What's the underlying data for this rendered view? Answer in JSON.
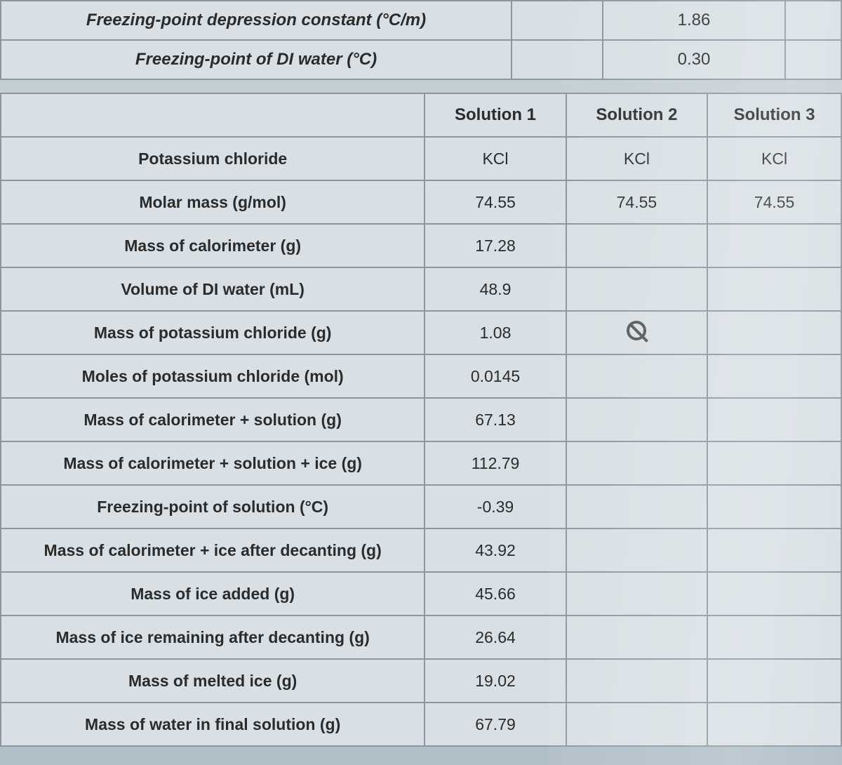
{
  "top": {
    "rows": [
      {
        "label": "Freezing-point depression constant (°C/m)",
        "value": "1.86"
      },
      {
        "label": "Freezing-point of DI water (°C)",
        "value": "0.30"
      }
    ]
  },
  "headers": {
    "blank": "",
    "sol1": "Solution 1",
    "sol2": "Solution 2",
    "sol3": "Solution 3"
  },
  "rows": [
    {
      "label": "Potassium chloride",
      "s1": "KCl",
      "s2": "KCl",
      "s3": "KCl"
    },
    {
      "label": "Molar mass (g/mol)",
      "s1": "74.55",
      "s2": "74.55",
      "s3": "74.55"
    },
    {
      "label": "Mass of calorimeter (g)",
      "s1": "17.28",
      "s2": "",
      "s3": ""
    },
    {
      "label": "Volume of DI water (mL)",
      "s1": "48.9",
      "s2": "",
      "s3": ""
    },
    {
      "label": "Mass of potassium chloride (g)",
      "s1": "1.08",
      "s2": "",
      "s3": ""
    },
    {
      "label": "Moles of potassium chloride (mol)",
      "s1": "0.0145",
      "s2": "",
      "s3": ""
    },
    {
      "label": "Mass of calorimeter + solution (g)",
      "s1": "67.13",
      "s2": "",
      "s3": ""
    },
    {
      "label": "Mass of calorimeter + solution + ice (g)",
      "s1": "112.79",
      "s2": "",
      "s3": ""
    },
    {
      "label": "Freezing-point of solution (°C)",
      "s1": "-0.39",
      "s2": "",
      "s3": ""
    },
    {
      "label": "Mass of calorimeter + ice after decanting (g)",
      "s1": "43.92",
      "s2": "",
      "s3": ""
    },
    {
      "label": "Mass of ice added (g)",
      "s1": "45.66",
      "s2": "",
      "s3": ""
    },
    {
      "label": "Mass of ice remaining after decanting (g)",
      "s1": "26.64",
      "s2": "",
      "s3": ""
    },
    {
      "label": "Mass of melted ice (g)",
      "s1": "19.02",
      "s2": "",
      "s3": ""
    },
    {
      "label": "Mass of water in final solution (g)",
      "s1": "67.79",
      "s2": "",
      "s3": ""
    }
  ],
  "cursor_row": 4,
  "colors": {
    "border": "#8a96a0",
    "cell_bg": "#d8e0e5",
    "text": "#2b2b2b"
  }
}
